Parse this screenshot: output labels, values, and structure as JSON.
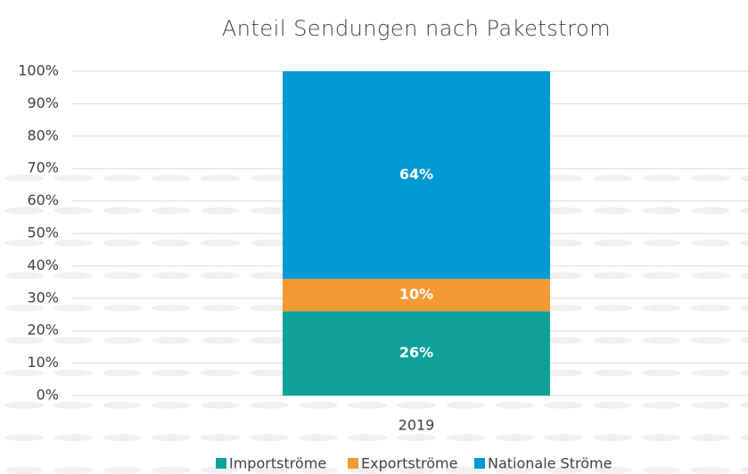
{
  "chart_data": {
    "type": "stacked_bar",
    "title": "Anteil Sendungen nach Paketstrom",
    "categories": [
      "2019"
    ],
    "series": [
      {
        "name": "Importströme",
        "color": "#10a09a",
        "values": [
          26
        ],
        "value_labels": [
          "26%"
        ]
      },
      {
        "name": "Exportströme",
        "color": "#f39a35",
        "values": [
          10
        ],
        "value_labels": [
          "10%"
        ]
      },
      {
        "name": "Nationale Ströme",
        "color": "#0099d3",
        "values": [
          64
        ],
        "value_labels": [
          "64%"
        ]
      }
    ],
    "ylim": [
      0,
      100
    ],
    "yticks": [
      {
        "value": 0,
        "label": "0%"
      },
      {
        "value": 10,
        "label": "10%"
      },
      {
        "value": 20,
        "label": "20%"
      },
      {
        "value": 30,
        "label": "30%"
      },
      {
        "value": 40,
        "label": "40%"
      },
      {
        "value": 50,
        "label": "50%"
      },
      {
        "value": 60,
        "label": "60%"
      },
      {
        "value": 70,
        "label": "70%"
      },
      {
        "value": 80,
        "label": "80%"
      },
      {
        "value": 90,
        "label": "90%"
      },
      {
        "value": 100,
        "label": "100%"
      }
    ],
    "grid": true,
    "legend": "bottom"
  }
}
